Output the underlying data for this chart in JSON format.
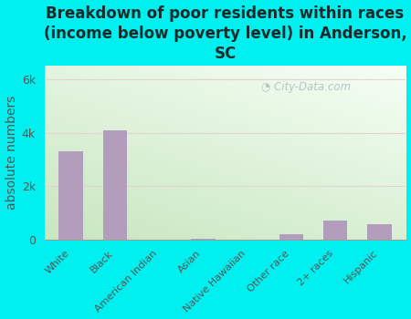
{
  "title": "Breakdown of poor residents within races\n(income below poverty level) in Anderson,\nSC",
  "categories": [
    "White",
    "Black",
    "American Indian",
    "Asian",
    "Native Hawaiian",
    "Other race",
    "2+ races",
    "Hispanic"
  ],
  "values": [
    3300,
    4100,
    0,
    25,
    0,
    200,
    700,
    580
  ],
  "bar_color": "#b39dbd",
  "ylabel": "absolute numbers",
  "yticks": [
    0,
    2000,
    4000,
    6000
  ],
  "ytick_labels": [
    "0",
    "2k",
    "4k",
    "6k"
  ],
  "ylim": [
    0,
    6500
  ],
  "background_color": "#00f0f0",
  "plot_bg_top_left": "#c8e6c0",
  "plot_bg_bottom_right": "#f5fff5",
  "watermark": "City-Data.com",
  "title_fontsize": 12,
  "ylabel_fontsize": 10,
  "title_color": "#1a2a2a",
  "tick_color": "#555555"
}
